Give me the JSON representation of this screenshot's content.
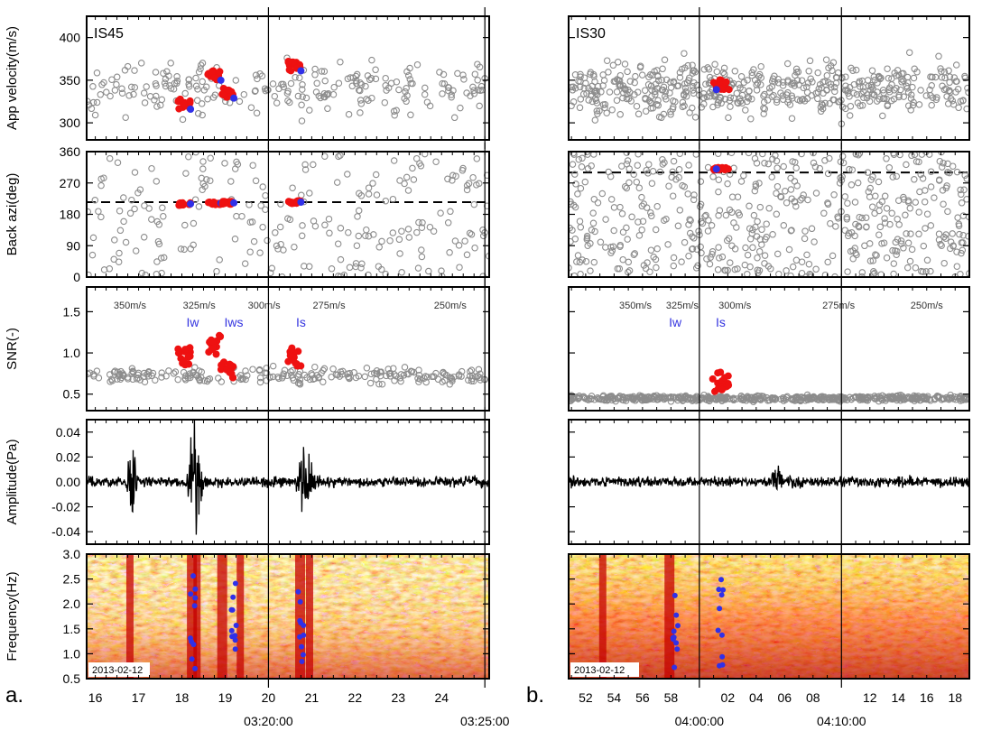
{
  "chart_data": [
    {
      "type": "scatter",
      "panel_label": "a.",
      "station": "IS45",
      "date_label": "2013-02-12",
      "x_tick_labels": [
        "16",
        "17",
        "18",
        "19",
        "20",
        "21",
        "22",
        "23",
        "24"
      ],
      "x_time_labels": [
        "03:20:00",
        "03:25:00"
      ],
      "velocity_labels": [
        "350m/s",
        "325m/s",
        "300m/s",
        "275m/s",
        "250m/s"
      ],
      "phases": [
        {
          "label": "Iw",
          "x": 18.25
        },
        {
          "label": "Iws",
          "x": 19.2
        },
        {
          "label": "Is",
          "x": 20.75
        }
      ],
      "app_velocity": {
        "ylabel": "App velocity(m/s)",
        "yticks": [
          300,
          350,
          400
        ],
        "ylim": [
          280,
          425
        ]
      },
      "back_azimuth": {
        "ylabel": "Back azi(deg)",
        "yticks": [
          0,
          90,
          180,
          270,
          360
        ],
        "ylim": [
          0,
          360
        ],
        "reference_line": 215
      },
      "snr": {
        "ylabel": "SNR(-)",
        "yticks": [
          0.5,
          1.0,
          1.5
        ],
        "ylim": [
          0.3,
          1.8
        ]
      },
      "amplitude": {
        "ylabel": "Amplitude(Pa)",
        "yticks": [
          -0.04,
          -0.02,
          0.0,
          0.02,
          0.04
        ],
        "ylim": [
          -0.05,
          0.05
        ]
      },
      "frequency": {
        "ylabel": "Frequency(Hz)",
        "yticks": [
          0.5,
          1.0,
          1.5,
          2.0,
          2.5,
          3.0
        ],
        "ylim": [
          0.5,
          3.0
        ]
      },
      "detections": [
        {
          "x": 18.05,
          "vel": 322,
          "az": 210,
          "snr": 0.95
        },
        {
          "x": 18.75,
          "vel": 356,
          "az": 212,
          "snr": 1.1
        },
        {
          "x": 19.05,
          "vel": 335,
          "az": 213,
          "snr": 0.8
        },
        {
          "x": 20.6,
          "vel": 367,
          "az": 215,
          "snr": 0.95
        }
      ]
    },
    {
      "type": "scatter",
      "panel_label": "b.",
      "station": "IS30",
      "date_label": "2013-02-12",
      "x_tick_labels": [
        "52",
        "54",
        "56",
        "58",
        "02",
        "04",
        "06",
        "08",
        "12",
        "14",
        "16",
        "18"
      ],
      "x_time_labels": [
        "04:00:00",
        "04:10:00"
      ],
      "velocity_labels": [
        "350m/s",
        "325m/s",
        "300m/s",
        "275m/s",
        "250m/s"
      ],
      "phases": [
        {
          "label": "Iw",
          "x": 58.3
        },
        {
          "label": "Is",
          "x": 61.5
        }
      ],
      "app_velocity": {
        "ylabel": "App velocity(m/s)",
        "yticks": [
          300,
          350,
          400
        ],
        "ylim": [
          280,
          425
        ]
      },
      "back_azimuth": {
        "ylabel": "Back azi(deg)",
        "yticks": [
          0,
          90,
          180,
          270,
          360
        ],
        "ylim": [
          0,
          360
        ],
        "reference_line": 300
      },
      "snr": {
        "ylabel": "SNR(-)",
        "yticks": [
          0.5,
          1.0,
          1.5
        ],
        "ylim": [
          0.3,
          1.8
        ]
      },
      "amplitude": {
        "ylabel": "Amplitude(Pa)",
        "yticks": [
          -0.04,
          -0.02,
          0.0,
          0.02,
          0.04
        ],
        "ylim": [
          -0.05,
          0.05
        ]
      },
      "frequency": {
        "ylabel": "Frequency(Hz)",
        "yticks": [
          0.5,
          1.0,
          1.5,
          2.0,
          2.5,
          3.0
        ],
        "ylim": [
          0.5,
          3.0
        ]
      },
      "detections": [
        {
          "x": 61.5,
          "vel": 345,
          "az": 310,
          "snr": 0.65
        }
      ]
    }
  ],
  "colors": {
    "background_points": "#8c8c8c",
    "detections": "#ee1111",
    "fstat_peaks": "#3030e8",
    "waveform": "#000000",
    "reference_line": "#000000"
  }
}
